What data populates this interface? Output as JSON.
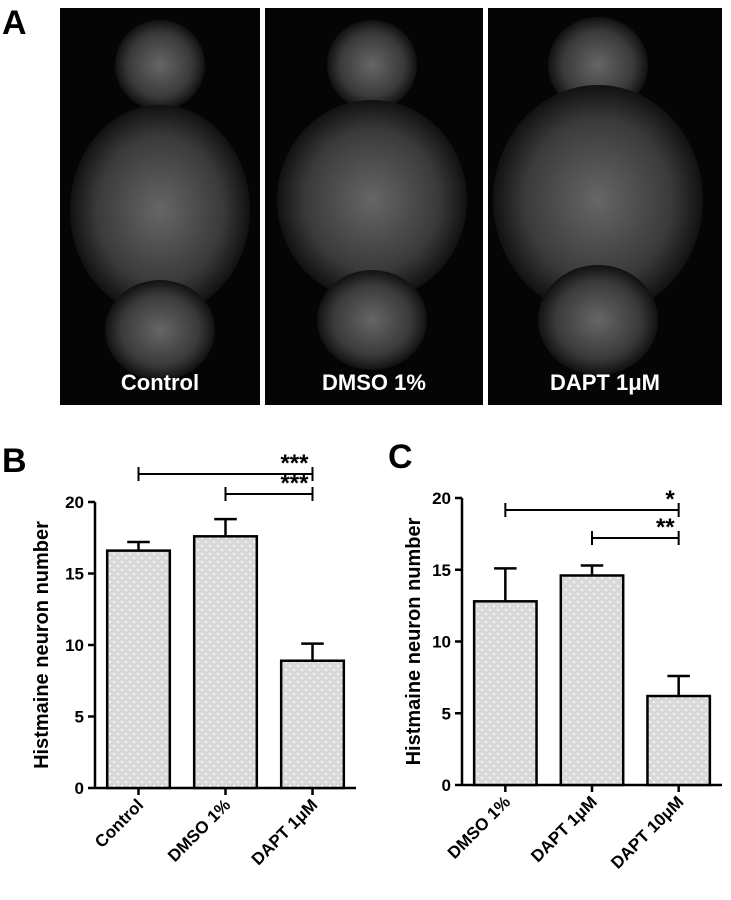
{
  "panel_a": {
    "label": "A",
    "images": [
      "Control",
      "DMSO 1%",
      "DAPT 1μM"
    ]
  },
  "chart_data": [
    {
      "type": "bar",
      "panel_label": "B",
      "ylabel": "Histmaine neuron number",
      "categories": [
        "Control",
        "DMSO 1%",
        "DAPT 1μM"
      ],
      "values": [
        16.6,
        17.6,
        8.9
      ],
      "errors": [
        0.6,
        1.2,
        1.2
      ],
      "ylim": [
        0,
        20
      ],
      "yticks": [
        0,
        5,
        10,
        15,
        20
      ],
      "color": "#d9d9d9",
      "annotations": [
        {
          "text": "***",
          "from": "Control",
          "to": "DAPT 1μM"
        },
        {
          "text": "***",
          "from": "DMSO 1%",
          "to": "DAPT 1μM"
        }
      ]
    },
    {
      "type": "bar",
      "panel_label": "C",
      "ylabel": "Histmaine neuron number",
      "categories": [
        "DMSO 1%",
        "DAPT 1μM",
        "DAPT 10μM"
      ],
      "values": [
        12.8,
        14.6,
        6.2
      ],
      "errors": [
        2.3,
        0.7,
        1.4
      ],
      "ylim": [
        0,
        20
      ],
      "yticks": [
        0,
        5,
        10,
        15,
        20
      ],
      "color": "#d9d9d9",
      "annotations": [
        {
          "text": "*",
          "from": "DMSO 1%",
          "to": "DAPT 10μM"
        },
        {
          "text": "**",
          "from": "DAPT 1μM",
          "to": "DAPT 10μM"
        }
      ]
    }
  ]
}
